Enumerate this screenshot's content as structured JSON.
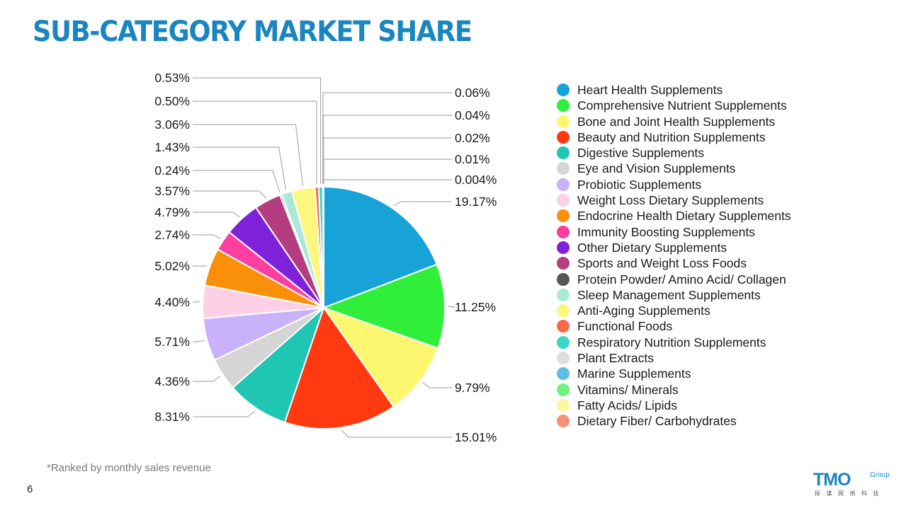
{
  "page": {
    "title": "SUB-CATEGORY MARKET SHARE",
    "footnote": "*Ranked by monthly sales revenue",
    "page_number": "6"
  },
  "logo": {
    "main": "TMO",
    "sup": "Group",
    "sub": "探谋网络科技"
  },
  "chart_data": {
    "type": "pie",
    "start_angle": "12 o'clock",
    "direction": "clockwise",
    "slices": [
      {
        "label": "Heart Health Supplements",
        "value": 19.17,
        "value_label": "19.17%",
        "color": "#18a3d8"
      },
      {
        "label": "Comprehensive Nutrient Supplements",
        "value": 11.25,
        "value_label": "11.25%",
        "color": "#2fef3a"
      },
      {
        "label": "Bone and Joint Health Supplements",
        "value": 9.79,
        "value_label": "9.79%",
        "color": "#fdf66f"
      },
      {
        "label": "Beauty and Nutrition Supplements",
        "value": 15.01,
        "value_label": "15.01%",
        "color": "#ff3a10"
      },
      {
        "label": "Digestive Supplements",
        "value": 8.31,
        "value_label": "8.31%",
        "color": "#1fc6b4"
      },
      {
        "label": "Eye and Vision Supplements",
        "value": 4.36,
        "value_label": "4.36%",
        "color": "#d5d5d5"
      },
      {
        "label": "Probiotic Supplements",
        "value": 5.71,
        "value_label": "5.71%",
        "color": "#cab2fa"
      },
      {
        "label": "Weight Loss Dietary Supplements",
        "value": 4.4,
        "value_label": "4.40%",
        "color": "#fdd0e6"
      },
      {
        "label": "Endocrine Health Dietary Supplements",
        "value": 5.02,
        "value_label": "5.02%",
        "color": "#fa8f0a"
      },
      {
        "label": "Immunity Boosting Supplements",
        "value": 2.74,
        "value_label": "2.74%",
        "color": "#fa3fa0"
      },
      {
        "label": "Other Dietary Supplements",
        "value": 4.79,
        "value_label": "4.79%",
        "color": "#7d22d8"
      },
      {
        "label": "Sports and Weight Loss Foods",
        "value": 3.57,
        "value_label": "3.57%",
        "color": "#b33d7e"
      },
      {
        "label": "Protein Powder/ Amino Acid/ Collagen",
        "value": 0.24,
        "value_label": "0.24%",
        "color": "#555555"
      },
      {
        "label": "Sleep Management Supplements",
        "value": 1.43,
        "value_label": "1.43%",
        "color": "#abe8d7"
      },
      {
        "label": "Anti-Aging Supplements",
        "value": 3.06,
        "value_label": "3.06%",
        "color": "#fdf780"
      },
      {
        "label": "Functional Foods",
        "value": 0.5,
        "value_label": "0.50%",
        "color": "#f56b4a"
      },
      {
        "label": "Respiratory Nutrition Supplements",
        "value": 0.53,
        "value_label": "0.53%",
        "color": "#3fd4c4"
      },
      {
        "label": "Plant Extracts",
        "value": 0.06,
        "value_label": "0.06%",
        "color": "#dedede"
      },
      {
        "label": "Marine Supplements",
        "value": 0.04,
        "value_label": "0.04%",
        "color": "#5ebde6"
      },
      {
        "label": "Vitamins/ Minerals",
        "value": 0.02,
        "value_label": "0.02%",
        "color": "#6ff280"
      },
      {
        "label": "Fatty Acids/ Lipids",
        "value": 0.01,
        "value_label": "0.01%",
        "color": "#fdf7a0"
      },
      {
        "label": "Dietary Fiber/ Carbohydrates",
        "value": 0.004,
        "value_label": "0.004%",
        "color": "#f99073"
      }
    ],
    "legend_position": "right"
  }
}
